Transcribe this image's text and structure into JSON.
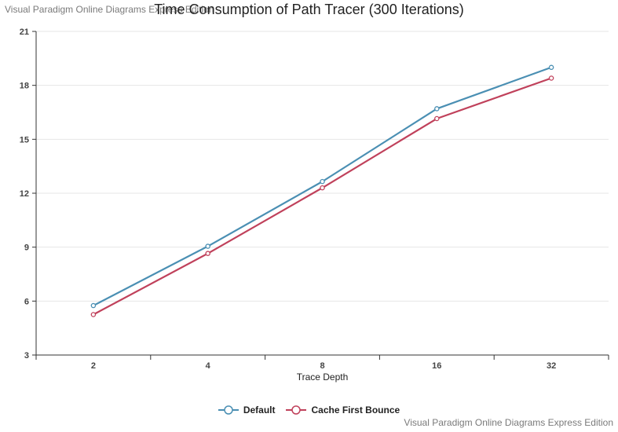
{
  "watermark": "Visual Paradigm Online Diagrams Express Edition",
  "chart_data": {
    "type": "line",
    "title": "Time Consumption of Path Tracer (300 Iterations)",
    "xlabel": "Trace Depth",
    "ylabel": "",
    "categories": [
      "2",
      "4",
      "8",
      "16",
      "32"
    ],
    "ylim": [
      3,
      21
    ],
    "yticks": [
      3,
      6,
      9,
      12,
      15,
      18,
      21
    ],
    "grid": true,
    "legend_position": "bottom-center",
    "series": [
      {
        "name": "Default",
        "color": "#4a8fb3",
        "values": [
          5.75,
          9.05,
          12.65,
          16.7,
          19.0
        ]
      },
      {
        "name": "Cache First Bounce",
        "color": "#c0415b",
        "values": [
          5.25,
          8.65,
          12.3,
          16.15,
          18.4
        ]
      }
    ]
  }
}
